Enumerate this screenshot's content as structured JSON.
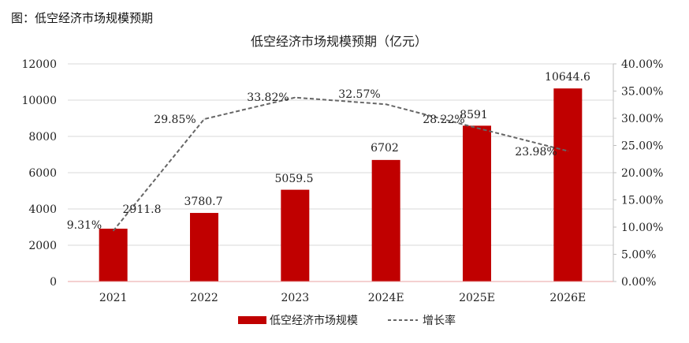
{
  "page_label": "图：低空经济市场规模预期",
  "chart_data": {
    "type": "bar",
    "title": "低空经济市场规模预期（亿元）",
    "categories": [
      "2021",
      "2022",
      "2023",
      "2024E",
      "2025E",
      "2026E"
    ],
    "series": [
      {
        "name": "低空经济市场规模",
        "type": "bar",
        "axis": "left",
        "values": [
          2911.8,
          3780.7,
          5059.5,
          6702,
          8591,
          10644.6
        ],
        "labels": [
          "2911.8",
          "3780.7",
          "5059.5",
          "6702",
          "8591",
          "10644.6"
        ],
        "color": "#c00000"
      },
      {
        "name": "增长率",
        "type": "line",
        "axis": "right",
        "style": "dashed",
        "values": [
          9.31,
          29.85,
          33.82,
          32.57,
          28.22,
          23.98
        ],
        "labels": [
          "9.31%",
          "29.85%",
          "33.82%",
          "32.57%",
          "28.22%",
          "23.98%"
        ],
        "color": "#666666"
      }
    ],
    "y_left": {
      "ylim": [
        0,
        12000
      ],
      "ticks": [
        "0",
        "2000",
        "4000",
        "6000",
        "8000",
        "10000",
        "12000"
      ]
    },
    "y_right": {
      "ylim": [
        0,
        40
      ],
      "ticks": [
        "0.00%",
        "5.00%",
        "10.00%",
        "15.00%",
        "20.00%",
        "25.00%",
        "30.00%",
        "35.00%",
        "40.00%"
      ]
    },
    "grid": "horizontal",
    "legend_position": "bottom-center"
  }
}
